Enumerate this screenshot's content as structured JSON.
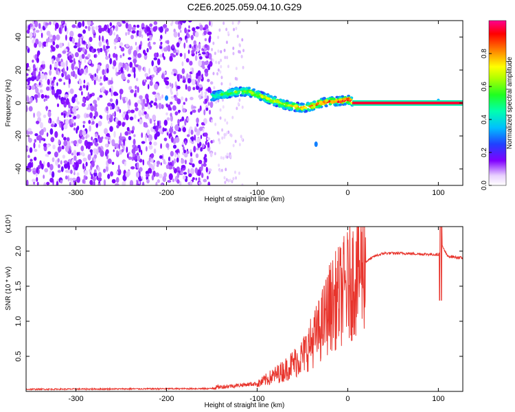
{
  "title": "C2E6.2025.059.04.10.G29",
  "chart_data": [
    {
      "type": "heatmap",
      "xlabel": "Height of straight line (km)",
      "ylabel": "Frequency (Hz)",
      "xlim": [
        -355,
        127
      ],
      "ylim": [
        -50,
        50
      ],
      "xticks": [
        -300,
        -200,
        -100,
        0,
        100
      ],
      "yticks": [
        -40,
        -20,
        0,
        20,
        40
      ],
      "colorbar": {
        "label": "Normalized spectral amplitude",
        "range": [
          0,
          1
        ],
        "ticks": [
          "0.0",
          "0.2",
          "0.4",
          "0.6",
          "0.8"
        ],
        "colormap": "rainbow"
      },
      "ridge": {
        "x": [
          -150,
          -140,
          -130,
          -120,
          -110,
          -100,
          -90,
          -80,
          -70,
          -60,
          -50,
          -40,
          -30,
          -20,
          -10,
          0,
          5
        ],
        "y": [
          4,
          5,
          6,
          7,
          7,
          5,
          3,
          1,
          -1,
          -2,
          -3,
          -2,
          0,
          1,
          1,
          2,
          1
        ]
      },
      "line": {
        "x": [
          5,
          127
        ],
        "y": 0,
        "amplitude": 0.95
      },
      "annotations": [
        {
          "x": -200,
          "y": 3,
          "amplitude": 0.3
        },
        {
          "x": -35,
          "y": -25,
          "amplitude": 0.3
        },
        {
          "x": 100,
          "y": 1,
          "amplitude": 0.35
        }
      ]
    },
    {
      "type": "line",
      "xlabel": "Height of straight line (km)",
      "ylabel": "SNR (10 * v/v)",
      "multiplier": "(x10⁴)",
      "xlim": [
        -355,
        127
      ],
      "ylim": [
        0,
        2.35
      ],
      "xticks": [
        -300,
        -200,
        -100,
        0,
        100
      ],
      "yticks": [
        0.5,
        1.0,
        1.5,
        2.0
      ],
      "ytick_labels": [
        "0.5",
        "1.0",
        "1.5",
        "2.0"
      ],
      "color": "#e8342c",
      "envelope": {
        "x": [
          -355,
          -150,
          -100,
          -70,
          -50,
          -30,
          -20,
          -10,
          0,
          10,
          20,
          30,
          40,
          60,
          80,
          100,
          103,
          110,
          127
        ],
        "y": [
          0.03,
          0.04,
          0.1,
          0.3,
          0.5,
          0.9,
          1.2,
          1.35,
          1.5,
          1.7,
          1.85,
          1.93,
          1.97,
          1.97,
          1.96,
          1.95,
          2.1,
          1.93,
          1.9
        ]
      }
    }
  ]
}
